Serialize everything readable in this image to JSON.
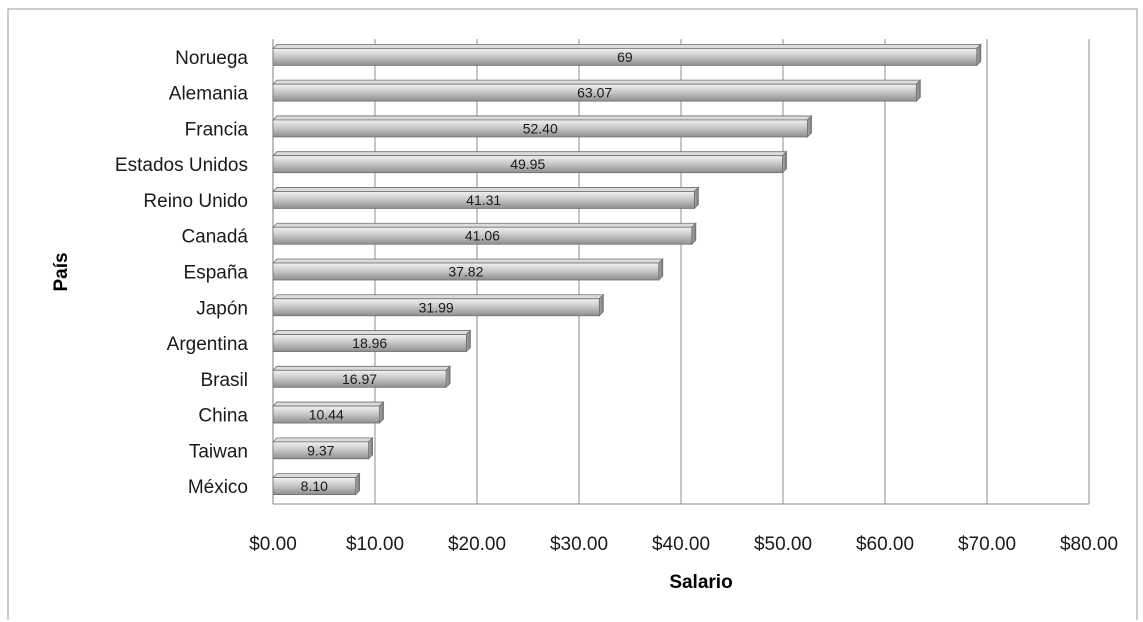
{
  "chart_data": {
    "type": "bar",
    "orientation": "horizontal",
    "title": "",
    "xlabel": "Salario",
    "ylabel": "País",
    "categories": [
      "Noruega",
      "Alemania",
      "Francia",
      "Estados Unidos",
      "Reino Unido",
      "Canadá",
      "España",
      "Japón",
      "Argentina",
      "Brasil",
      "China ",
      "Taiwan",
      "México"
    ],
    "values": [
      69,
      63.07,
      52.4,
      49.95,
      41.31,
      41.06,
      37.82,
      31.99,
      18.96,
      16.97,
      10.44,
      9.37,
      8.1
    ],
    "data_labels": [
      "69",
      "63.07",
      "52.40",
      "49.95",
      "41.31",
      "41.06",
      "37.82",
      "31.99",
      "18.96",
      "16.97",
      "10.44",
      "9.37",
      "8.10"
    ],
    "xlim": [
      0,
      80
    ],
    "x_ticks": [
      0,
      10,
      20,
      30,
      40,
      50,
      60,
      70,
      80
    ],
    "x_tick_labels": [
      "$0.00",
      "$10.00",
      "$20.00",
      "$30.00",
      "$40.00",
      "$50.00",
      "$60.00",
      "$70.00",
      "$80.00"
    ],
    "grid": true,
    "legend": "none",
    "bar_color": "#b8b8b8",
    "bar_edge_color": "#6f6f6f",
    "grid_color": "#8c8c8c"
  }
}
